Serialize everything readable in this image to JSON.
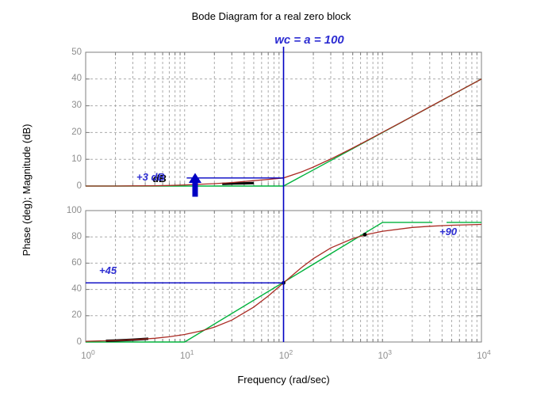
{
  "title": "Bode Diagram for a real zero block",
  "xlabel": "Frequency (rad/sec)",
  "ylabel": "Phase (deg); Magnitude (dB)",
  "annotations": {
    "wc_label": "wc = a = 100",
    "plus3_prefix": "+3",
    "plus3_suffix": "dB",
    "plus45_label": "+45",
    "plus90_label": "+90"
  },
  "colors": {
    "background": "#ffffff",
    "axis": "#7f7f7f",
    "grid": "#ababab",
    "tick_label": "#8e8e8e",
    "asymptote_green": "#00b23c",
    "exact_red": "#aa2b24",
    "highlight_black": "#000000",
    "annotation_blue_text": "#2d2dd2",
    "annotation_blue_line": "#0000c3"
  },
  "chart_data": [
    {
      "type": "line",
      "name": "magnitude",
      "ylabel": "Magnitude (dB)",
      "xscale": "log",
      "xlim": [
        1,
        10000
      ],
      "ylim": [
        0,
        50
      ],
      "yticks": [
        0,
        10,
        20,
        30,
        40,
        50
      ],
      "xtick_exponents": [
        0,
        1,
        2,
        3,
        4
      ],
      "grid": true,
      "series": [
        {
          "name": "asymptote",
          "color": "#00b23c",
          "width": 1.4,
          "x": [
            1,
            100,
            10000
          ],
          "y": [
            0,
            0,
            40
          ]
        },
        {
          "name": "exact-highlight-black",
          "color": "#000000",
          "width": 3,
          "x": [
            24,
            32,
            40,
            50
          ],
          "y": [
            0.8,
            0.95,
            1.0,
            1.1
          ]
        },
        {
          "name": "exact",
          "color": "#aa2b24",
          "width": 1.3,
          "x": [
            1,
            2,
            3,
            5,
            7,
            10,
            15,
            20,
            30,
            50,
            70,
            100,
            150,
            200,
            300,
            500,
            700,
            1000,
            2000,
            3000,
            5000,
            10000
          ],
          "y": [
            0,
            0,
            0.05,
            0.1,
            0.2,
            0.4,
            0.7,
            0.9,
            1.3,
            2.0,
            2.5,
            3.01,
            5.2,
            7.1,
            10.1,
            14.2,
            17.0,
            20.1,
            26.0,
            29.6,
            34.0,
            40.0
          ]
        }
      ],
      "blue_hline": {
        "y": 3,
        "x1": 10.5,
        "x2": 100,
        "label": "+3 dB"
      },
      "blue_vline": {
        "x": 100,
        "label": "wc = a = 100"
      }
    },
    {
      "type": "line",
      "name": "phase",
      "ylabel": "Phase (deg)",
      "xscale": "log",
      "xlim": [
        1,
        10000
      ],
      "ylim": [
        0,
        100
      ],
      "yticks": [
        0,
        20,
        40,
        60,
        80,
        100
      ],
      "xtick_exponents": [
        0,
        1,
        2,
        3,
        4
      ],
      "grid": true,
      "series": [
        {
          "name": "asymptote",
          "color": "#00b23c",
          "width": 1.4,
          "x": [
            1,
            10,
            1000,
            3190
          ],
          "y": [
            0,
            0,
            91,
            91
          ]
        },
        {
          "name": "asymptote-flat-right",
          "color": "#00b23c",
          "width": 1.4,
          "x": [
            4440,
            10000
          ],
          "y": [
            91,
            91
          ]
        },
        {
          "name": "exact-highlight-black",
          "color": "#000000",
          "width": 3,
          "x": [
            1.6,
            2,
            3,
            4.3
          ],
          "y": [
            0.92,
            1.15,
            1.72,
            2.46
          ]
        },
        {
          "name": "exact",
          "color": "#aa2b24",
          "width": 1.3,
          "x": [
            1,
            2,
            3,
            5,
            7,
            10,
            15,
            20,
            30,
            50,
            70,
            100,
            150,
            200,
            300,
            500,
            700,
            1000,
            2000,
            3000,
            5000,
            10000
          ],
          "y": [
            0.57,
            1.15,
            1.72,
            2.86,
            4.0,
            5.71,
            8.53,
            11.31,
            16.7,
            26.57,
            34.99,
            45.0,
            56.31,
            63.43,
            71.57,
            78.69,
            81.87,
            84.29,
            87.14,
            88.09,
            88.85,
            89.43
          ]
        },
        {
          "name": "crossing-dots-black",
          "color": "#000000",
          "dot": true,
          "radius": 2.4,
          "x": [
            100,
            663
          ],
          "y": [
            45,
            81.7
          ]
        }
      ],
      "blue_hline": {
        "y": 45,
        "x1": 1,
        "x2": 100,
        "label": "+45"
      },
      "blue_vline": {
        "x": 100
      },
      "level_label": {
        "value": 90,
        "label": "+90"
      }
    }
  ]
}
